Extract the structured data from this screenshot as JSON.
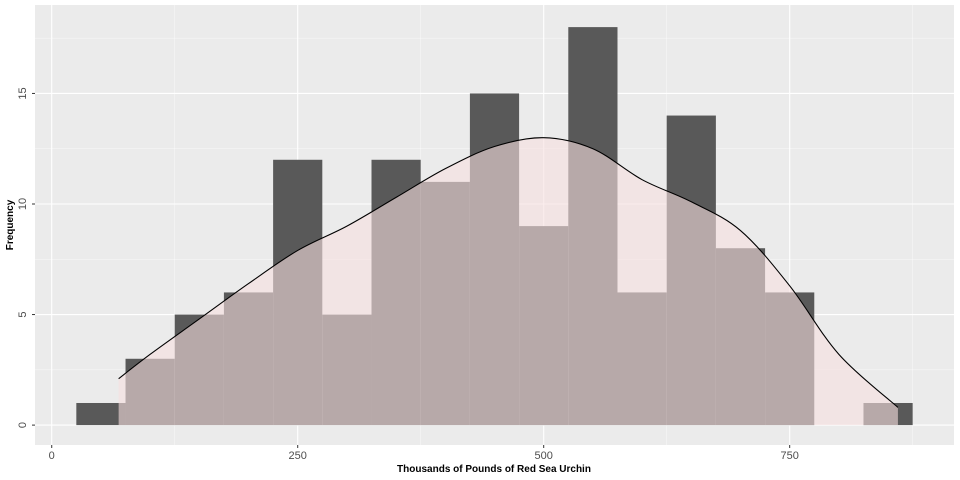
{
  "chart_data": {
    "type": "bar",
    "title": "",
    "xlabel": "Thousands of Pounds of Red Sea Urchin",
    "ylabel": "Frequency",
    "xlim": [
      -17,
      917
    ],
    "ylim": [
      -0.9,
      19.0
    ],
    "x_ticks": [
      0,
      250,
      500,
      750
    ],
    "y_ticks": [
      0,
      5,
      10,
      15
    ],
    "grid": true,
    "bin_width": 50,
    "bins": [
      {
        "start": 25,
        "end": 75,
        "count": 1
      },
      {
        "start": 75,
        "end": 125,
        "count": 3
      },
      {
        "start": 125,
        "end": 175,
        "count": 5
      },
      {
        "start": 175,
        "end": 225,
        "count": 6
      },
      {
        "start": 225,
        "end": 275,
        "count": 12
      },
      {
        "start": 275,
        "end": 325,
        "count": 5
      },
      {
        "start": 325,
        "end": 375,
        "count": 12
      },
      {
        "start": 375,
        "end": 425,
        "count": 11
      },
      {
        "start": 425,
        "end": 475,
        "count": 15
      },
      {
        "start": 475,
        "end": 525,
        "count": 9
      },
      {
        "start": 525,
        "end": 575,
        "count": 18
      },
      {
        "start": 575,
        "end": 625,
        "count": 6
      },
      {
        "start": 625,
        "end": 675,
        "count": 14
      },
      {
        "start": 675,
        "end": 725,
        "count": 8
      },
      {
        "start": 725,
        "end": 775,
        "count": 6
      },
      {
        "start": 775,
        "end": 825,
        "count": 0
      },
      {
        "start": 825,
        "end": 875,
        "count": 1
      }
    ],
    "density_curve": {
      "x": [
        68,
        100,
        150,
        200,
        250,
        300,
        350,
        400,
        450,
        500,
        550,
        600,
        650,
        700,
        750,
        800,
        860
      ],
      "y": [
        2.1,
        3.2,
        4.8,
        6.4,
        7.9,
        9.0,
        10.3,
        11.6,
        12.6,
        13.0,
        12.5,
        11.1,
        10.1,
        8.8,
        6.3,
        3.2,
        0.8
      ]
    },
    "colors": {
      "panel_background": "#ebebeb",
      "grid_major": "#ffffff",
      "bar_fill": "#595959",
      "density_fill": "#f7dfdf",
      "density_fill_opacity": 0.6,
      "density_line": "#000000"
    }
  }
}
